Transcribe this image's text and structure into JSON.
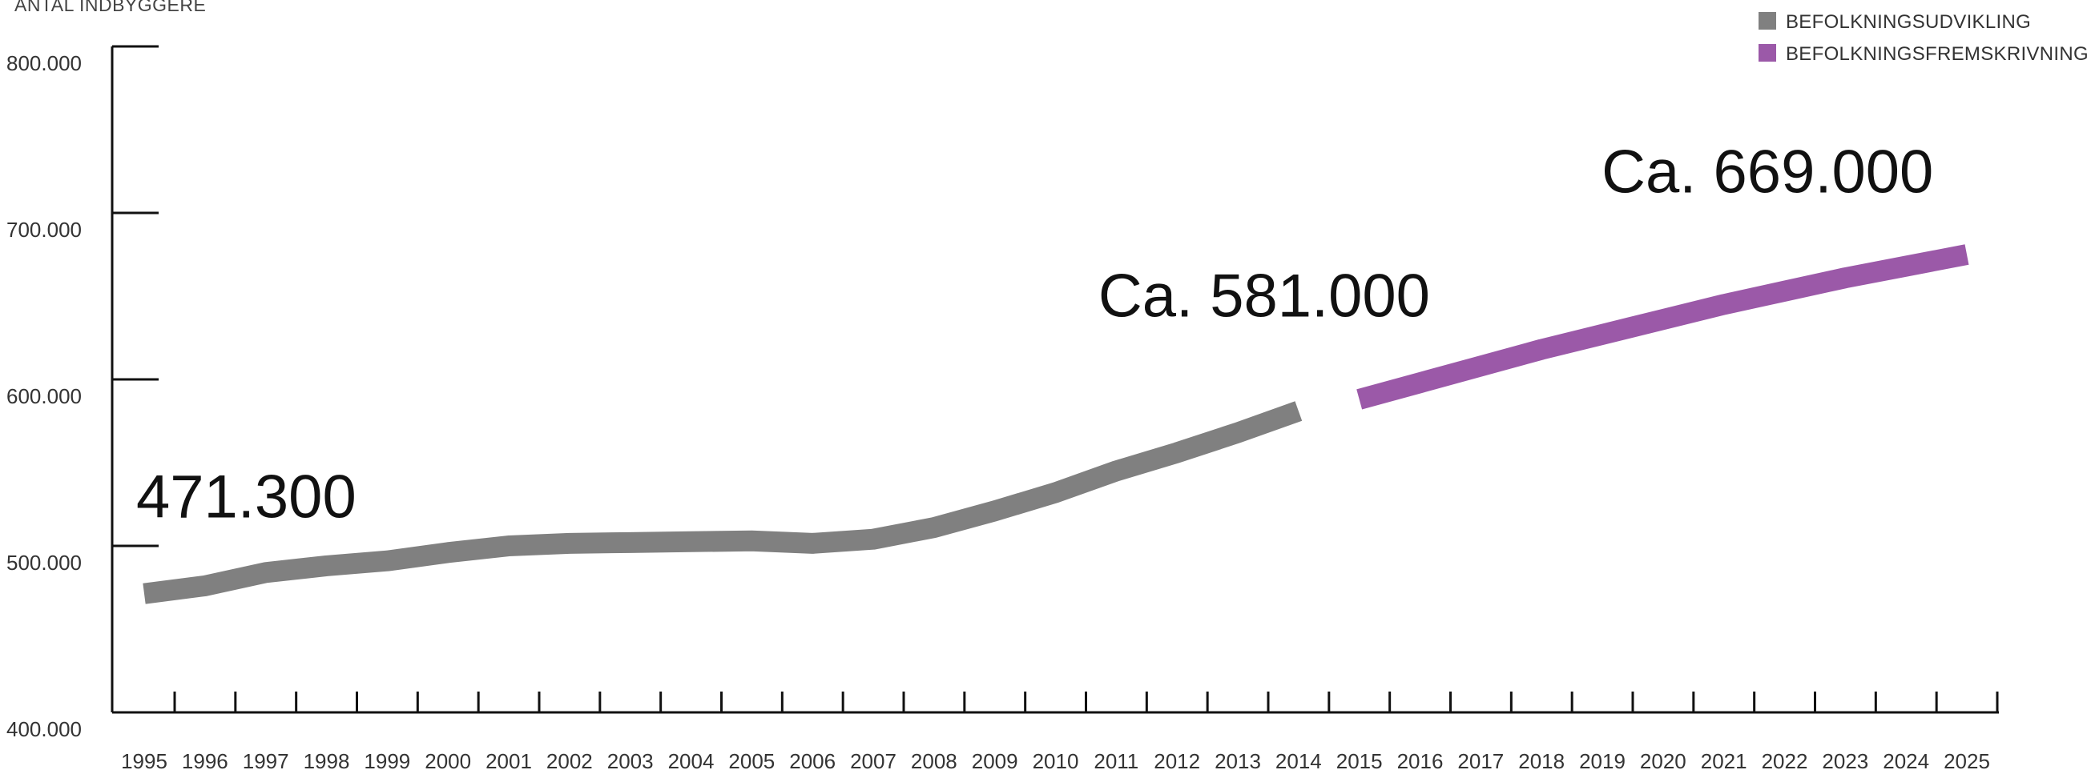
{
  "chart_data": {
    "type": "line",
    "ylabel": "ANTAL INDBYGGERE",
    "xlabel": "",
    "ylim": [
      400000,
      800000
    ],
    "xlim": [
      1995,
      2025
    ],
    "y_ticks": [
      {
        "value": 400000,
        "label": "400.000"
      },
      {
        "value": 500000,
        "label": "500.000"
      },
      {
        "value": 600000,
        "label": "600.000"
      },
      {
        "value": 700000,
        "label": "700.000"
      },
      {
        "value": 800000,
        "label": "800.000"
      }
    ],
    "x_tick_labels": [
      "1995",
      "1996",
      "1997",
      "1998",
      "1999",
      "2000",
      "2001",
      "2002",
      "2003",
      "2004",
      "2005",
      "2006",
      "2007",
      "2008",
      "2009",
      "2010",
      "2011",
      "2012",
      "2013",
      "2014",
      "2015",
      "2016",
      "2017",
      "2018",
      "2019",
      "2020",
      "2021",
      "2022",
      "2023",
      "2024",
      "2025"
    ],
    "legend_position": "top-right",
    "series": [
      {
        "name": "BEFOLKNINGSUDVIKLING",
        "color": "#808080",
        "x": [
          1995,
          1996,
          1997,
          1998,
          1999,
          2000,
          2001,
          2002,
          2003,
          2004,
          2005,
          2006,
          2007,
          2008,
          2009,
          2010,
          2011,
          2012,
          2013,
          2014
        ],
        "values": [
          471300,
          476000,
          484000,
          488000,
          491000,
          496000,
          500000,
          501500,
          502000,
          502500,
          503000,
          501500,
          504000,
          511000,
          521000,
          532000,
          545000,
          556000,
          568000,
          581000
        ]
      },
      {
        "name": "BEFOLKNINGSFREMSKRIVNING",
        "color": "#9b59a8",
        "x": [
          2015,
          2016,
          2017,
          2018,
          2019,
          2020,
          2021,
          2022,
          2023,
          2024,
          2025
        ],
        "values": [
          588000,
          598000,
          608000,
          618000,
          627000,
          636000,
          645000,
          653000,
          661000,
          668000,
          675000
        ]
      }
    ],
    "annotations": [
      {
        "text": "471.300",
        "x": 1995,
        "y": 471300
      },
      {
        "text": "Ca. 581.000",
        "x": 2014,
        "y": 581000
      },
      {
        "text": "Ca. 669.000",
        "x": 2024,
        "y": 669000
      }
    ]
  }
}
